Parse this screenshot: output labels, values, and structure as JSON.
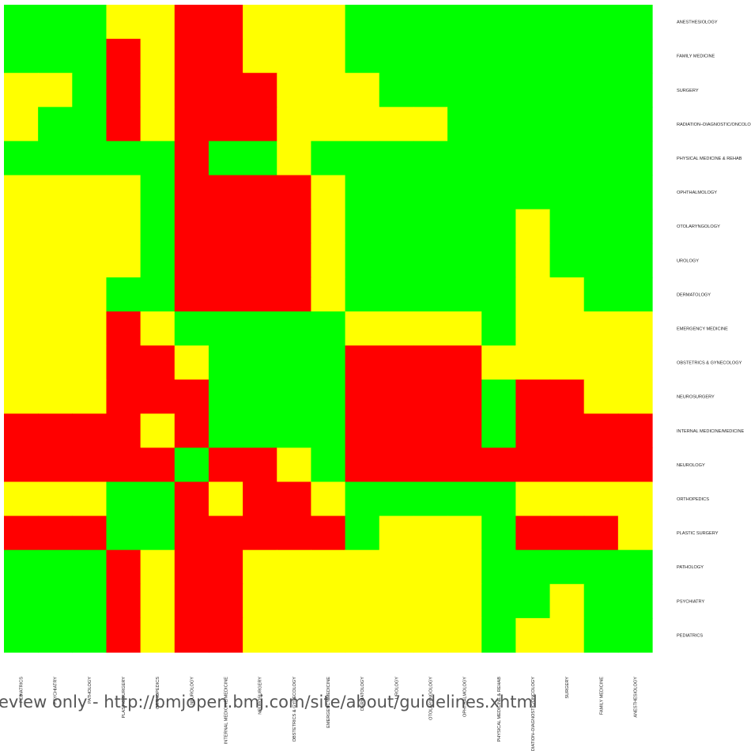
{
  "chart_data": {
    "type": "heatmap",
    "title": "",
    "xlabel": "",
    "ylabel": "",
    "legend": "none",
    "color_map": {
      "G": "#00ff00",
      "Y": "#ffff00",
      "R": "#ff0000"
    },
    "row_labels": [
      "ANESTHESIOLOGY",
      "FAMILY MEDICINE",
      "SURGERY",
      "RADIATION–DIAGNOSTIC/ONCOLOG",
      "PHYSICAL MEDICINE & REHAB",
      "OPHTHALMOLOGY",
      "OTOLARYNGOLOGY",
      "UROLOGY",
      "DERMATOLOGY",
      "EMERGENCY MEDICINE",
      "OBSTETRICS & GYNECOLOGY",
      "NEUROSURGERY",
      "INTERNAL MEDICINE/MEDICINE",
      "NEUROLOGY",
      "ORTHOPEDICS",
      "PLASTIC SURGERY",
      "PATHOLOGY",
      "PSYCHIATRY",
      "PEDIATRICS"
    ],
    "column_labels": [
      "PEDIATRICS",
      "PSYCHIATRY",
      "PATHOLOGY",
      "PLASTIC SURGERY",
      "ORTHOPEDICS",
      "NEUROLOGY",
      "INTERNAL MEDICINE/MEDICINE",
      "NEUROSURGERY",
      "OBSTETRICS & GYNECOLOGY",
      "EMERGENCY MEDICINE",
      "DERMATOLOGY",
      "UROLOGY",
      "OTOLARYNGOLOGY",
      "OPHTHALMOLOGY",
      "PHYSICAL MEDICINE & REHAB",
      "RADIATION–DIAGNOSTIC/ONCOLOGY",
      "SURGERY",
      "FAMILY MEDICINE",
      "ANESTHESIOLOGY"
    ],
    "cells": [
      "GGGYYRRYYYGGGGGGGGG",
      "GGGRYRRYYYGGGGGGGGG",
      "YYGRYRRRYYYGGGGGGGG",
      "YGGRYRRRYYYYYGGGGGG",
      "GGGGGRGGYGGGGGGGGGG",
      "YYYYGRRRRYGGGGGGGGG",
      "YYYYGRRRRYGGGGGYGGG",
      "YYYYGRRRRYGGGGGYGGG",
      "YYYGGRRRRYGGGGGYYGG",
      "YYYRYGGGGGYYYYGYYYY",
      "YYYRRYGGGGRRRRYYYYY",
      "YYYRRRGGGGRRRRGRRYY",
      "RRRRYRGGGGRRRRGRRRR",
      "RRRRRGRRYGRRRRRRRRR",
      "YYYGGRYRRYGGGGGYYYY",
      "RRRGGRRRRRGYYYGRRRY",
      "GGGRYRRYYYYYYYGGGGG",
      "GGGRYRRYYYYYYYGGYGG",
      "GGGRYRRYYYYYYYGYYGG"
    ]
  },
  "watermark": "eview only - http://bmjopen.bmj.com/site/about/guidelines.xhtml"
}
